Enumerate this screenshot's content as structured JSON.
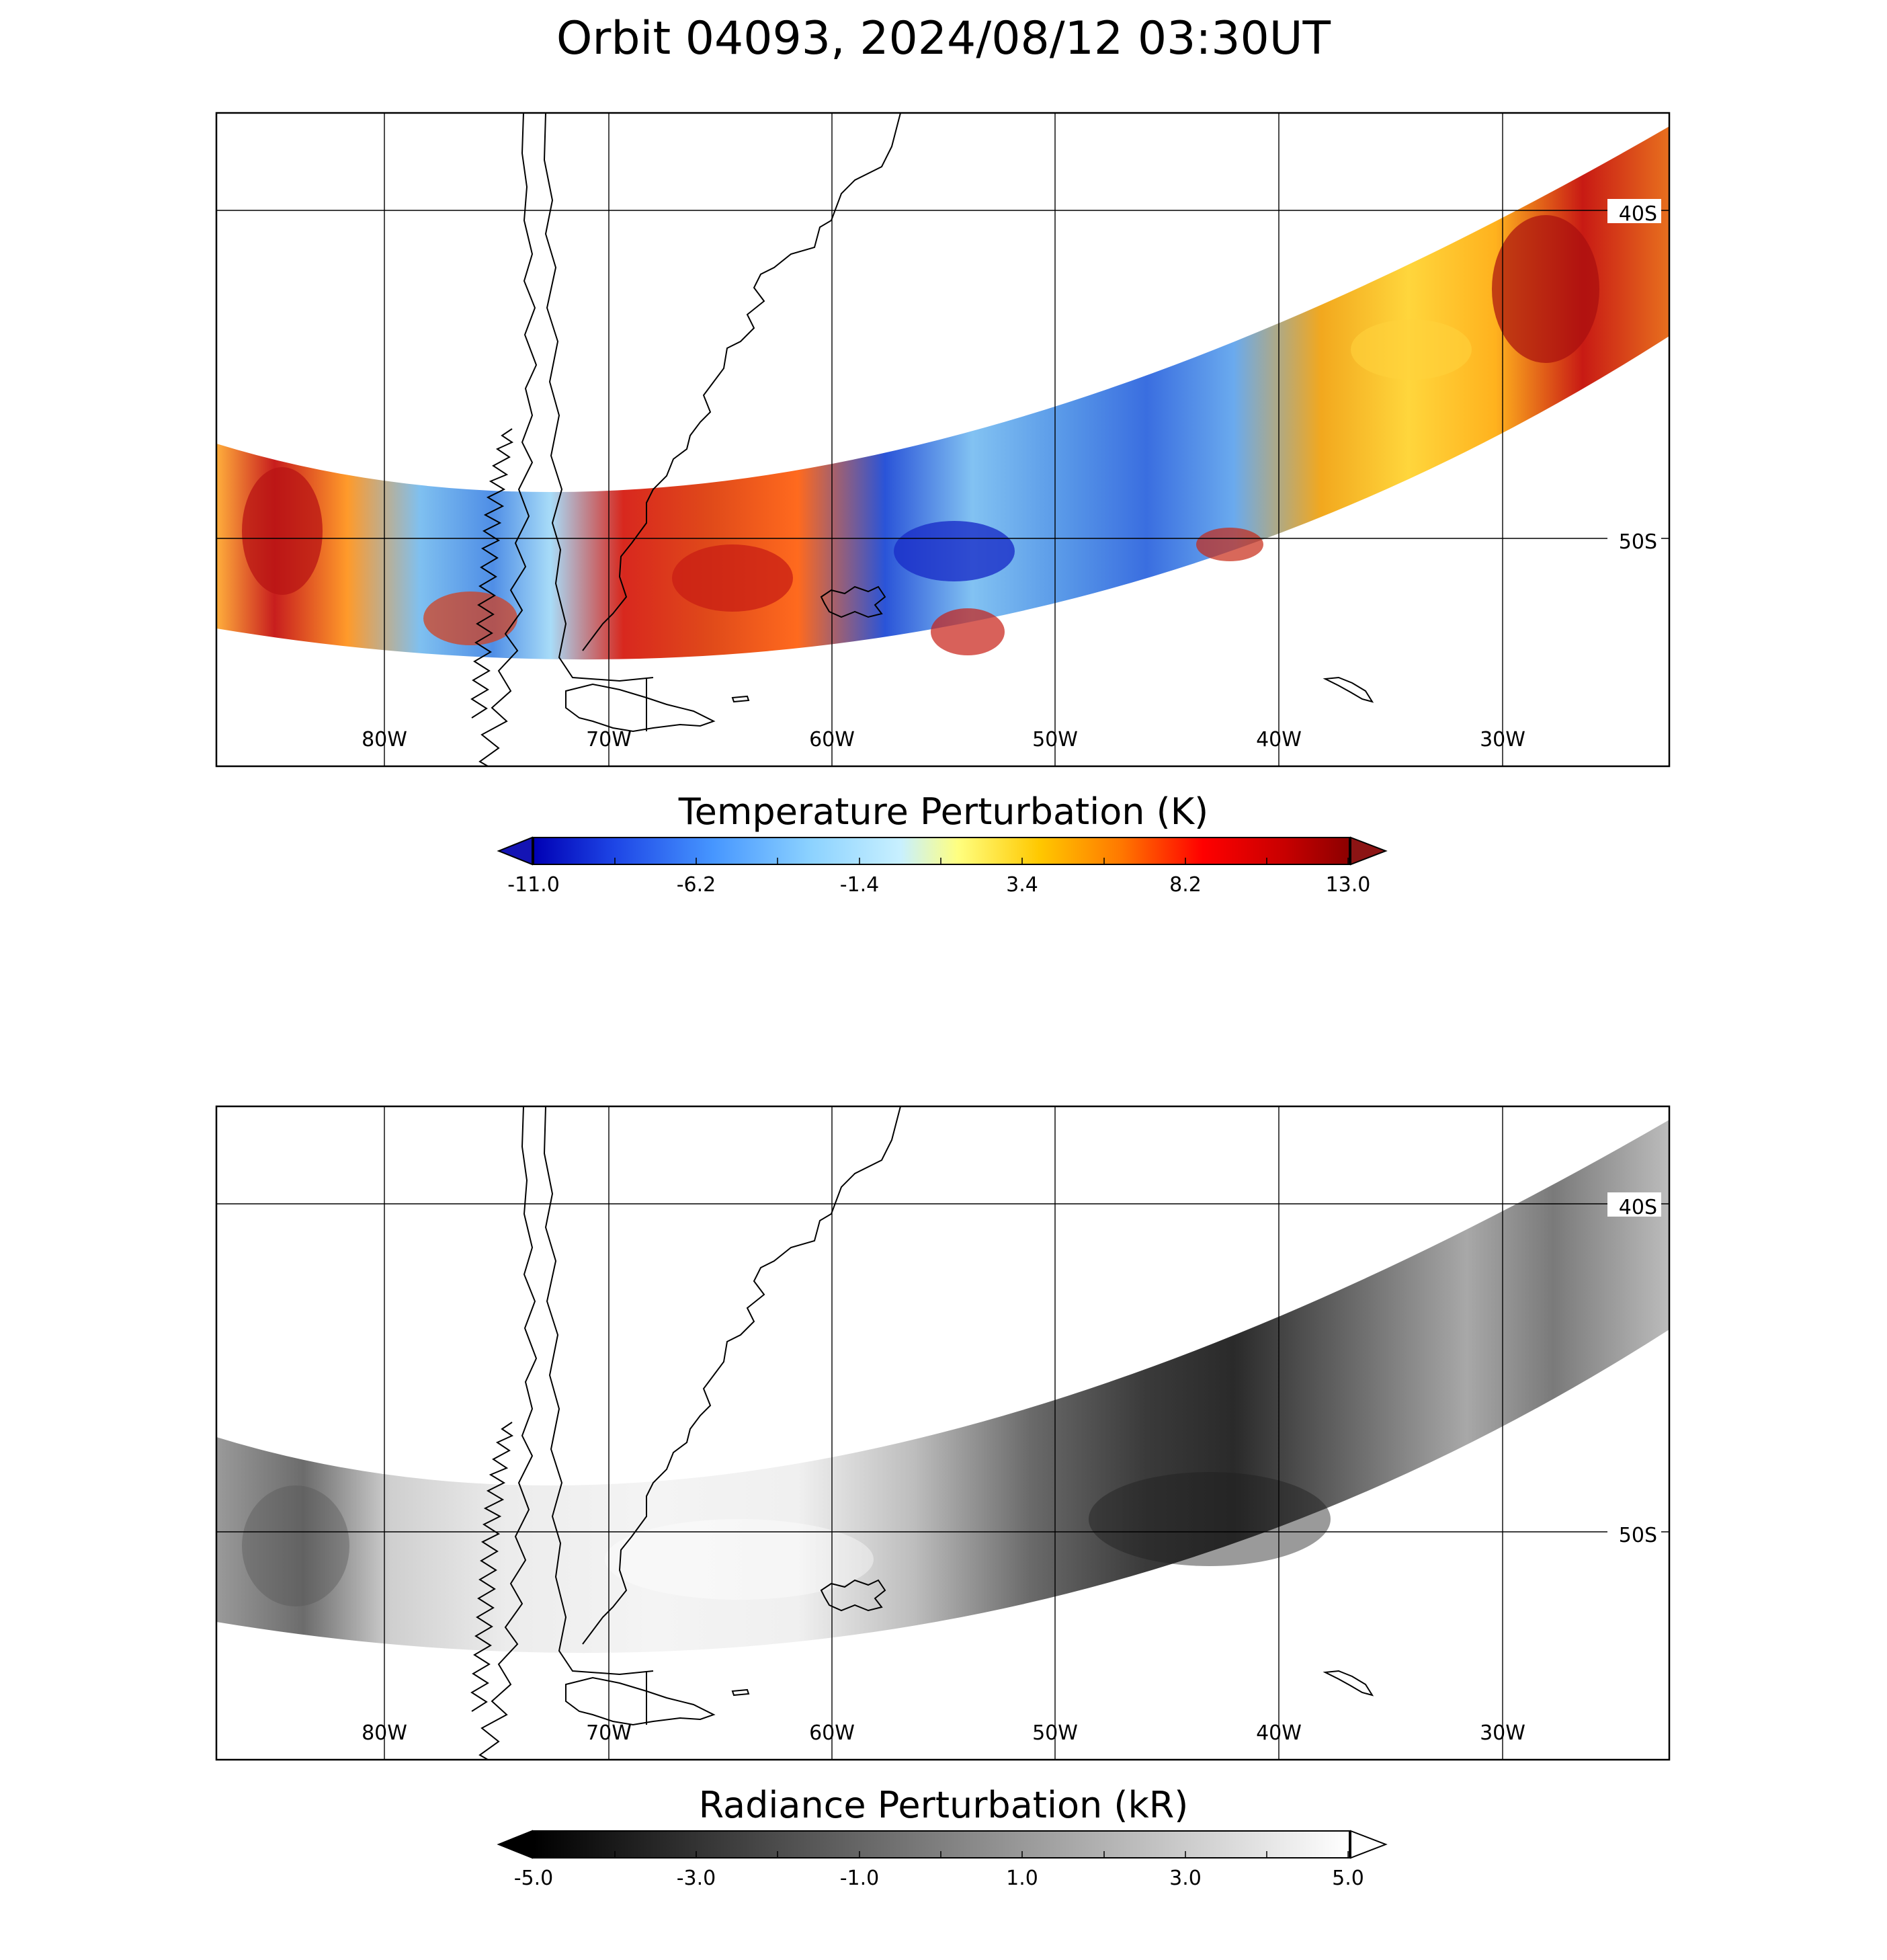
{
  "title": "Orbit 04093, 2024/08/12 03:30UT",
  "panels": [
    {
      "variable": "temperature",
      "lon_labels": [
        "80W",
        "70W",
        "60W",
        "50W",
        "40W",
        "30W"
      ],
      "lat_labels": [
        "40S",
        "50S"
      ],
      "colorbar": {
        "label": "Temperature Perturbation (K)",
        "ticks": [
          "-11.0",
          "-6.2",
          "-1.4",
          "3.4",
          "8.2",
          "13.0"
        ],
        "range": [
          -11.0,
          13.0
        ],
        "colormap": [
          "#0000b4",
          "#1e46e6",
          "#4696ff",
          "#8cd2ff",
          "#c8f0ff",
          "#ffff80",
          "#ffc800",
          "#ff7800",
          "#ff0000",
          "#c80000",
          "#8c0000"
        ],
        "under_color": "#1414b4",
        "over_color": "#8c1414"
      }
    },
    {
      "variable": "radiance",
      "lon_labels": [
        "80W",
        "70W",
        "60W",
        "50W",
        "40W",
        "30W"
      ],
      "lat_labels": [
        "40S",
        "50S"
      ],
      "colorbar": {
        "label": "Radiance Perturbation (kR)",
        "ticks": [
          "-5.0",
          "-3.0",
          "-1.0",
          "1.0",
          "3.0",
          "5.0"
        ],
        "range": [
          -5.0,
          5.0
        ],
        "colormap": [
          "#000000",
          "#ffffff"
        ],
        "under_color": "#000000",
        "over_color": "#ffffff"
      }
    }
  ]
}
